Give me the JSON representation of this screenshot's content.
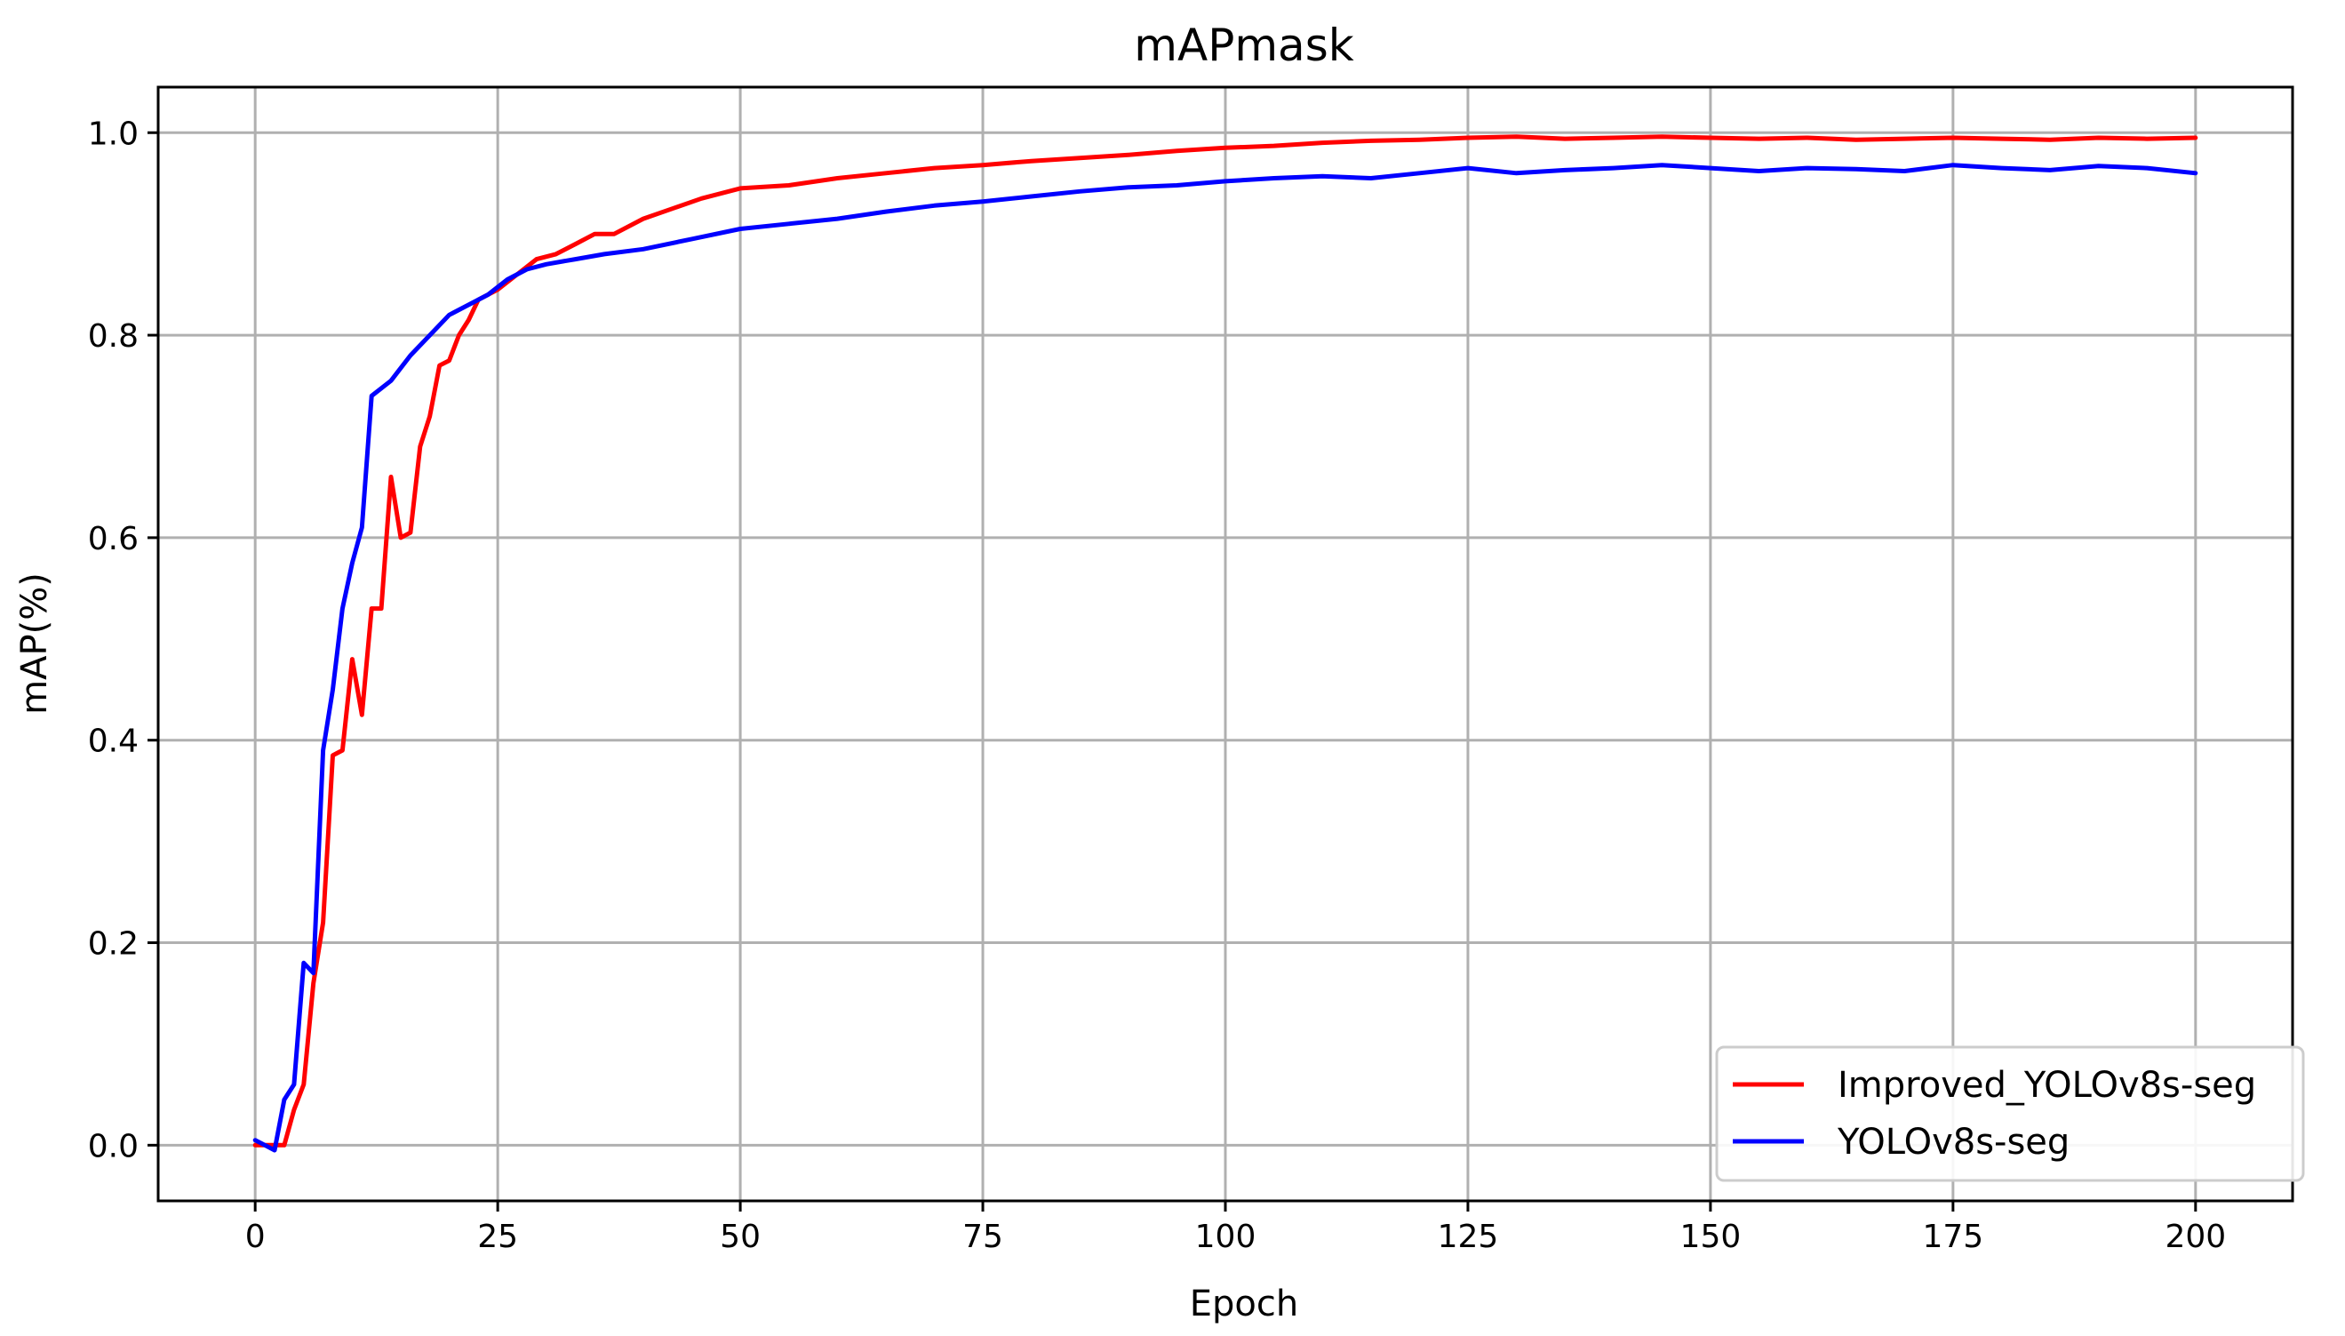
{
  "chart_data": {
    "type": "line",
    "title": "mAPmask",
    "xlabel": "Epoch",
    "ylabel": "mAP(%)",
    "xlim": [
      -10,
      210
    ],
    "ylim": [
      -0.055,
      1.045
    ],
    "xticks": [
      0,
      25,
      50,
      75,
      100,
      125,
      150,
      175,
      200
    ],
    "xtick_labels": [
      "0",
      "25",
      "50",
      "75",
      "100",
      "125",
      "150",
      "175",
      "200"
    ],
    "yticks": [
      0.0,
      0.2,
      0.4,
      0.6,
      0.8,
      1.0
    ],
    "ytick_labels": [
      "0.0",
      "0.2",
      "0.4",
      "0.6",
      "0.8",
      "1.0"
    ],
    "grid": true,
    "legend_position": "lower right",
    "series": [
      {
        "name": "Improved_YOLOv8s-seg",
        "color": "#ff0000",
        "points": [
          [
            0,
            0.0
          ],
          [
            2,
            0.0
          ],
          [
            3,
            0.0
          ],
          [
            4,
            0.035
          ],
          [
            5,
            0.06
          ],
          [
            6,
            0.16
          ],
          [
            7,
            0.22
          ],
          [
            8,
            0.385
          ],
          [
            9,
            0.39
          ],
          [
            10,
            0.48
          ],
          [
            11,
            0.425
          ],
          [
            12,
            0.53
          ],
          [
            13,
            0.53
          ],
          [
            14,
            0.66
          ],
          [
            15,
            0.6
          ],
          [
            16,
            0.605
          ],
          [
            17,
            0.69
          ],
          [
            18,
            0.72
          ],
          [
            19,
            0.77
          ],
          [
            20,
            0.775
          ],
          [
            21,
            0.8
          ],
          [
            22,
            0.815
          ],
          [
            23,
            0.835
          ],
          [
            25,
            0.845
          ],
          [
            27,
            0.86
          ],
          [
            29,
            0.875
          ],
          [
            31,
            0.88
          ],
          [
            33,
            0.89
          ],
          [
            35,
            0.9
          ],
          [
            37,
            0.9
          ],
          [
            40,
            0.915
          ],
          [
            43,
            0.925
          ],
          [
            46,
            0.935
          ],
          [
            50,
            0.945
          ],
          [
            55,
            0.948
          ],
          [
            60,
            0.955
          ],
          [
            65,
            0.96
          ],
          [
            70,
            0.965
          ],
          [
            75,
            0.968
          ],
          [
            80,
            0.972
          ],
          [
            85,
            0.975
          ],
          [
            90,
            0.978
          ],
          [
            95,
            0.982
          ],
          [
            100,
            0.985
          ],
          [
            105,
            0.987
          ],
          [
            110,
            0.99
          ],
          [
            115,
            0.992
          ],
          [
            120,
            0.993
          ],
          [
            125,
            0.995
          ],
          [
            130,
            0.996
          ],
          [
            135,
            0.994
          ],
          [
            140,
            0.995
          ],
          [
            145,
            0.996
          ],
          [
            150,
            0.995
          ],
          [
            155,
            0.994
          ],
          [
            160,
            0.995
          ],
          [
            165,
            0.993
          ],
          [
            170,
            0.994
          ],
          [
            175,
            0.995
          ],
          [
            180,
            0.994
          ],
          [
            185,
            0.993
          ],
          [
            190,
            0.995
          ],
          [
            195,
            0.994
          ],
          [
            200,
            0.995
          ]
        ]
      },
      {
        "name": "YOLOv8s-seg",
        "color": "#0000ff",
        "points": [
          [
            0,
            0.005
          ],
          [
            1,
            0.0
          ],
          [
            2,
            -0.005
          ],
          [
            3,
            0.045
          ],
          [
            4,
            0.06
          ],
          [
            5,
            0.18
          ],
          [
            6,
            0.17
          ],
          [
            7,
            0.39
          ],
          [
            8,
            0.45
          ],
          [
            9,
            0.53
          ],
          [
            10,
            0.575
          ],
          [
            11,
            0.61
          ],
          [
            12,
            0.74
          ],
          [
            14,
            0.755
          ],
          [
            16,
            0.78
          ],
          [
            18,
            0.8
          ],
          [
            20,
            0.82
          ],
          [
            22,
            0.83
          ],
          [
            24,
            0.84
          ],
          [
            26,
            0.855
          ],
          [
            28,
            0.865
          ],
          [
            30,
            0.87
          ],
          [
            33,
            0.875
          ],
          [
            36,
            0.88
          ],
          [
            40,
            0.885
          ],
          [
            45,
            0.895
          ],
          [
            50,
            0.905
          ],
          [
            55,
            0.91
          ],
          [
            60,
            0.915
          ],
          [
            65,
            0.922
          ],
          [
            70,
            0.928
          ],
          [
            75,
            0.932
          ],
          [
            80,
            0.937
          ],
          [
            85,
            0.942
          ],
          [
            90,
            0.946
          ],
          [
            95,
            0.948
          ],
          [
            100,
            0.952
          ],
          [
            105,
            0.955
          ],
          [
            110,
            0.957
          ],
          [
            115,
            0.955
          ],
          [
            120,
            0.96
          ],
          [
            125,
            0.965
          ],
          [
            130,
            0.96
          ],
          [
            135,
            0.963
          ],
          [
            140,
            0.965
          ],
          [
            145,
            0.968
          ],
          [
            150,
            0.965
          ],
          [
            155,
            0.962
          ],
          [
            160,
            0.965
          ],
          [
            165,
            0.964
          ],
          [
            170,
            0.962
          ],
          [
            175,
            0.968
          ],
          [
            180,
            0.965
          ],
          [
            185,
            0.963
          ],
          [
            190,
            0.967
          ],
          [
            195,
            0.965
          ],
          [
            200,
            0.96
          ]
        ]
      }
    ]
  }
}
